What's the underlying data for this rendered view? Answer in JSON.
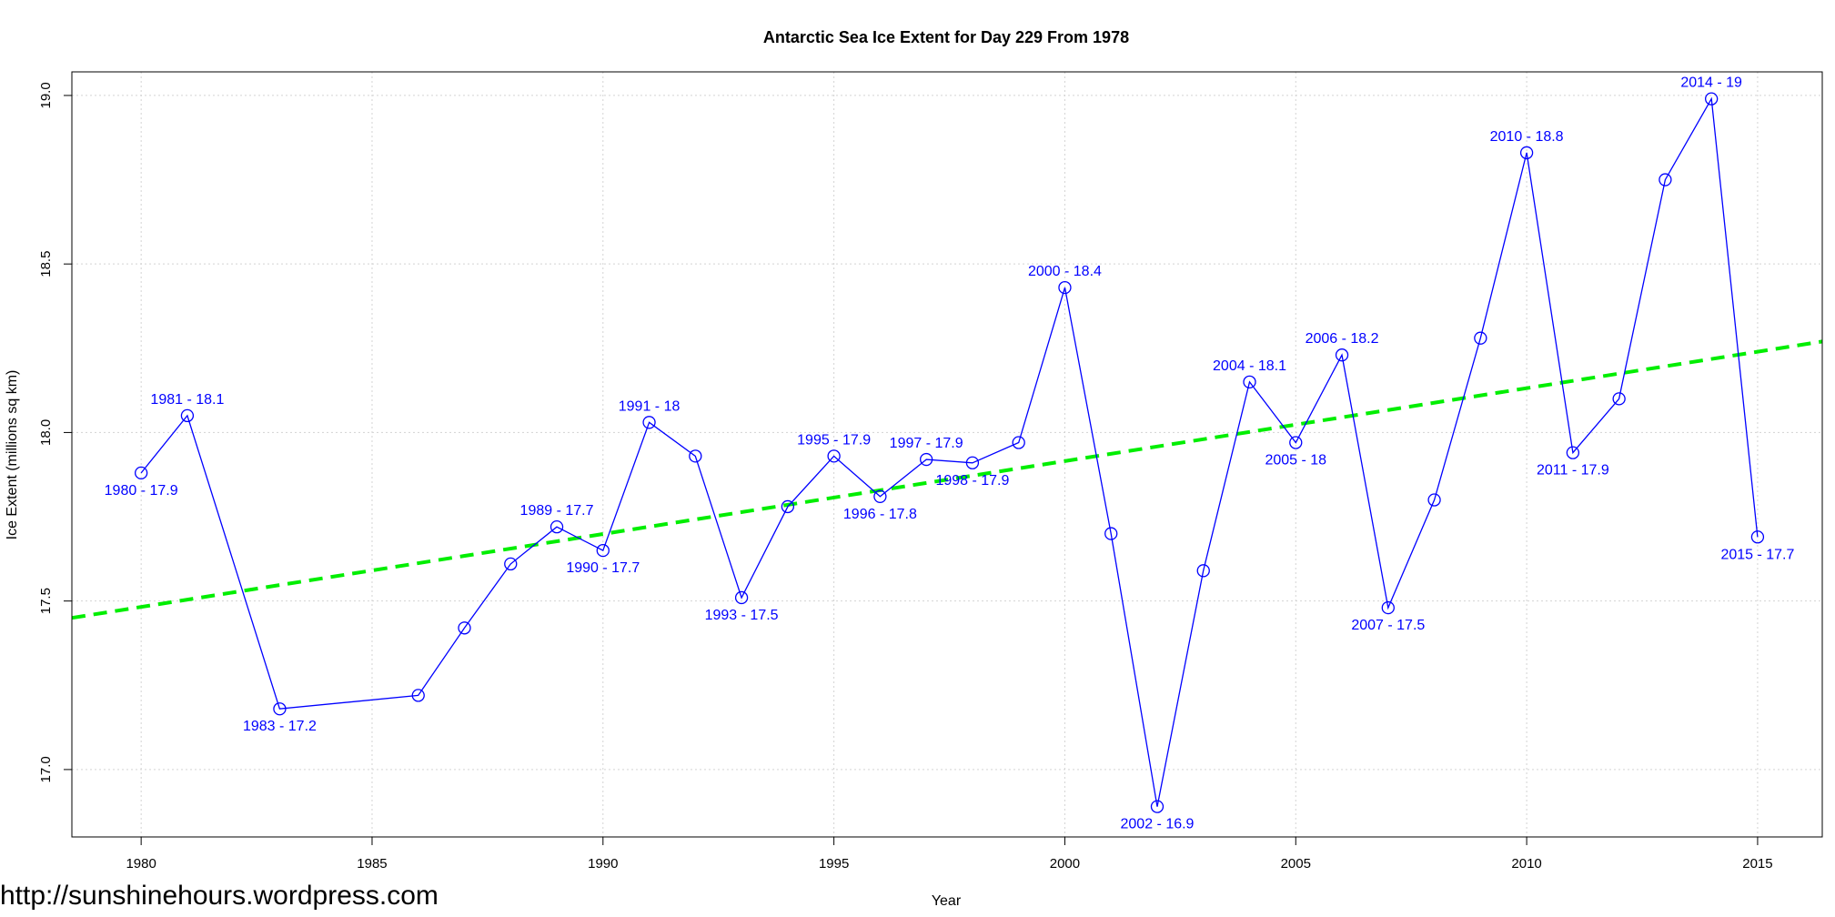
{
  "chart_data": {
    "type": "line",
    "title": "Antarctic Sea Ice Extent for Day 229 From 1978",
    "xlabel": "Year",
    "ylabel": "Ice Extent (millions sq km)",
    "xlim": [
      1978.5,
      2016.4
    ],
    "ylim": [
      16.8,
      19.07
    ],
    "x_ticks": [
      1980,
      1985,
      1990,
      1995,
      2000,
      2005,
      2010,
      2015
    ],
    "y_ticks": [
      17.0,
      17.5,
      18.0,
      18.5,
      19.0
    ],
    "grid": true,
    "series": [
      {
        "color": "#0000ff",
        "points": [
          {
            "x": 1980,
            "y": 17.88,
            "label": "1980 - 17.9"
          },
          {
            "x": 1981,
            "y": 18.05,
            "label": "1981 - 18.1"
          },
          {
            "x": 1983,
            "y": 17.18,
            "label": "1983 - 17.2"
          },
          {
            "x": 1986,
            "y": 17.22,
            "label": ""
          },
          {
            "x": 1987,
            "y": 17.42,
            "label": ""
          },
          {
            "x": 1988,
            "y": 17.61,
            "label": ""
          },
          {
            "x": 1989,
            "y": 17.72,
            "label": "1989 - 17.7"
          },
          {
            "x": 1990,
            "y": 17.65,
            "label": "1990 - 17.7"
          },
          {
            "x": 1991,
            "y": 18.03,
            "label": "1991 - 18"
          },
          {
            "x": 1992,
            "y": 17.93,
            "label": ""
          },
          {
            "x": 1993,
            "y": 17.51,
            "label": "1993 - 17.5"
          },
          {
            "x": 1994,
            "y": 17.78,
            "label": ""
          },
          {
            "x": 1995,
            "y": 17.93,
            "label": "1995 - 17.9"
          },
          {
            "x": 1996,
            "y": 17.81,
            "label": "1996 - 17.8"
          },
          {
            "x": 1997,
            "y": 17.92,
            "label": "1997 - 17.9"
          },
          {
            "x": 1998,
            "y": 17.91,
            "label": "1998 - 17.9"
          },
          {
            "x": 1999,
            "y": 17.97,
            "label": ""
          },
          {
            "x": 2000,
            "y": 18.43,
            "label": "2000 - 18.4"
          },
          {
            "x": 2001,
            "y": 17.7,
            "label": ""
          },
          {
            "x": 2002,
            "y": 16.89,
            "label": "2002 - 16.9"
          },
          {
            "x": 2003,
            "y": 17.59,
            "label": ""
          },
          {
            "x": 2004,
            "y": 18.15,
            "label": "2004 - 18.1"
          },
          {
            "x": 2005,
            "y": 17.97,
            "label": "2005 - 18"
          },
          {
            "x": 2006,
            "y": 18.23,
            "label": "2006 - 18.2"
          },
          {
            "x": 2007,
            "y": 17.48,
            "label": "2007 - 17.5"
          },
          {
            "x": 2008,
            "y": 17.8,
            "label": ""
          },
          {
            "x": 2009,
            "y": 18.28,
            "label": ""
          },
          {
            "x": 2010,
            "y": 18.83,
            "label": "2010 - 18.8"
          },
          {
            "x": 2011,
            "y": 17.94,
            "label": "2011 - 17.9"
          },
          {
            "x": 2012,
            "y": 18.1,
            "label": ""
          },
          {
            "x": 2013,
            "y": 18.75,
            "label": ""
          },
          {
            "x": 2014,
            "y": 18.99,
            "label": "2014 - 19"
          },
          {
            "x": 2015,
            "y": 17.69,
            "label": "2015 - 17.7"
          }
        ]
      }
    ],
    "trend": {
      "color": "#00ee00",
      "style": "dashed",
      "start": {
        "x": 1978.5,
        "y": 17.45
      },
      "end": {
        "x": 2016.4,
        "y": 18.27
      }
    }
  },
  "watermark": "http://sunshinehours.wordpress.com"
}
